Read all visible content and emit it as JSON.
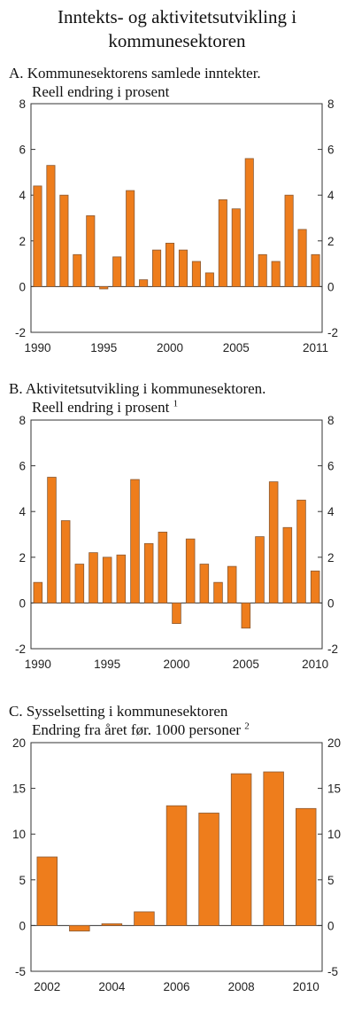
{
  "title": [
    "Inntekts- og aktivitetsutvikling i",
    "kommunesektoren"
  ],
  "colors": {
    "bar": "#ee7d1c",
    "bar_edge": "#8a5a34",
    "axis": "#333333"
  },
  "chart_data": [
    {
      "type": "bar",
      "title_line1": "A.  Kommunesektorens samlede inntekter.",
      "title_line2": "Reell endring i prosent",
      "footnote": "",
      "x": [
        1990,
        1991,
        1992,
        1993,
        1994,
        1995,
        1996,
        1997,
        1998,
        1999,
        2000,
        2001,
        2002,
        2003,
        2004,
        2005,
        2006,
        2007,
        2008,
        2009,
        2010,
        2011
      ],
      "values": [
        4.4,
        5.3,
        4.0,
        1.4,
        3.1,
        -0.1,
        1.3,
        4.2,
        0.3,
        1.6,
        1.9,
        1.6,
        1.1,
        0.6,
        3.8,
        3.4,
        5.6,
        1.4,
        1.1,
        4.0,
        2.5,
        1.4
      ],
      "x_tick_labels": [
        "1990",
        "1995",
        "2000",
        "2005",
        "2011"
      ],
      "y_tick_labels": [
        "-2",
        "0",
        "2",
        "4",
        "6",
        "8"
      ],
      "ylim": [
        -2,
        8
      ],
      "grid": false
    },
    {
      "type": "bar",
      "title_line1": "B.  Aktivitetsutvikling i kommunesektoren.",
      "title_line2": "Reell endring i prosent",
      "footnote": "1",
      "x": [
        1990,
        1991,
        1992,
        1993,
        1994,
        1995,
        1996,
        1997,
        1998,
        1999,
        2000,
        2001,
        2002,
        2003,
        2004,
        2005,
        2006,
        2007,
        2008,
        2009,
        2010
      ],
      "values": [
        0.9,
        5.5,
        3.6,
        1.7,
        2.2,
        2.0,
        2.1,
        5.4,
        2.6,
        3.1,
        -0.9,
        2.8,
        1.7,
        0.9,
        1.6,
        -1.1,
        2.9,
        5.3,
        3.3,
        4.5,
        1.4
      ],
      "x_tick_labels": [
        "1990",
        "1995",
        "2000",
        "2005",
        "2010"
      ],
      "y_tick_labels": [
        "-2",
        "0",
        "2",
        "4",
        "6",
        "8"
      ],
      "ylim": [
        -2,
        8
      ],
      "grid": false
    },
    {
      "type": "bar",
      "title_line1": "C.  Sysselsetting i kommunesektoren",
      "title_line2": "Endring fra året før. 1000 personer",
      "footnote": "2",
      "x": [
        2002,
        2003,
        2004,
        2005,
        2006,
        2007,
        2008,
        2009,
        2010
      ],
      "values": [
        7.5,
        -0.6,
        0.2,
        1.5,
        13.1,
        12.3,
        16.6,
        16.8,
        12.8
      ],
      "x_tick_labels": [
        "2002",
        "2004",
        "2006",
        "2008",
        "2010"
      ],
      "y_tick_labels": [
        "-5",
        "0",
        "5",
        "10",
        "15",
        "20"
      ],
      "ylim": [
        -5,
        20
      ],
      "grid": false
    }
  ]
}
